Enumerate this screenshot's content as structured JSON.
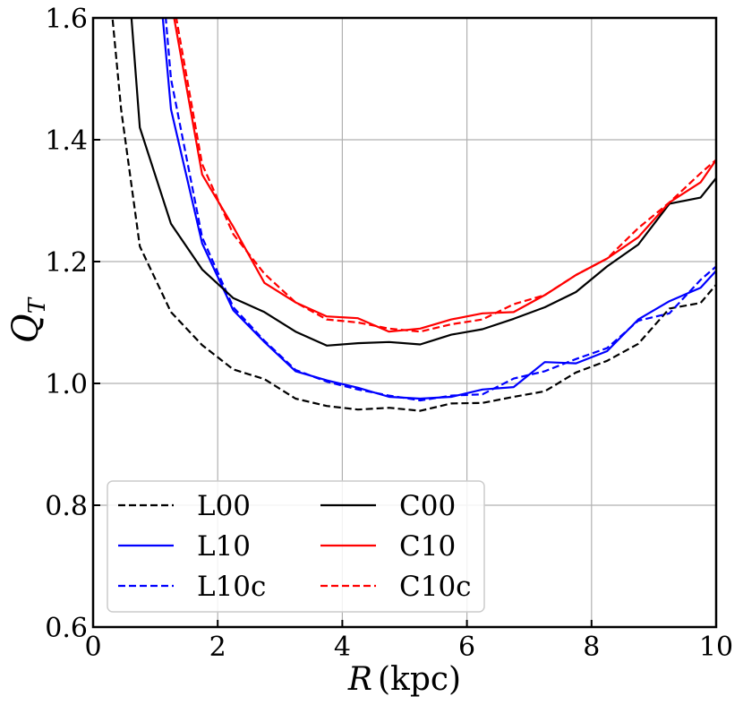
{
  "chart_data": {
    "type": "line",
    "xlabel": "R (kpc)",
    "ylabel": "Q_T",
    "xlim": [
      0,
      10
    ],
    "ylim": [
      0.6,
      1.6
    ],
    "xticks": [
      0,
      2,
      4,
      6,
      8,
      10
    ],
    "yticks": [
      0.6,
      0.8,
      1.0,
      1.2,
      1.4,
      1.6
    ],
    "xtick_labels": [
      "0",
      "2",
      "4",
      "6",
      "8",
      "10"
    ],
    "ytick_labels": [
      "0.6",
      "0.8",
      "1.0",
      "1.2",
      "1.4",
      "1.6"
    ],
    "grid": true,
    "legend": {
      "placement": "lower-left",
      "columns": 2
    },
    "series": [
      {
        "name": "L00",
        "color": "#000000",
        "dash": "dashed",
        "x": [
          0.2,
          0.45,
          0.75,
          1.25,
          1.75,
          2.25,
          2.75,
          3.25,
          3.75,
          4.25,
          4.75,
          5.25,
          5.75,
          6.25,
          6.75,
          7.25,
          7.75,
          8.25,
          8.75,
          9.25,
          9.75,
          10.0
        ],
        "y": [
          1.72,
          1.45,
          1.225,
          1.117,
          1.063,
          1.023,
          1.007,
          0.975,
          0.963,
          0.957,
          0.96,
          0.955,
          0.967,
          0.968,
          0.978,
          0.987,
          1.018,
          1.037,
          1.065,
          1.123,
          1.132,
          1.162
        ]
      },
      {
        "name": "L10",
        "color": "#0000ff",
        "dash": "solid",
        "x": [
          1.1,
          1.25,
          1.75,
          2.25,
          2.75,
          3.25,
          3.75,
          4.25,
          4.75,
          5.25,
          5.75,
          6.25,
          6.75,
          7.25,
          7.75,
          8.25,
          8.75,
          9.25,
          9.75,
          10.0
        ],
        "y": [
          1.62,
          1.45,
          1.23,
          1.12,
          1.068,
          1.02,
          1.005,
          0.993,
          0.978,
          0.975,
          0.978,
          0.99,
          0.994,
          1.035,
          1.033,
          1.053,
          1.105,
          1.135,
          1.157,
          1.185
        ]
      },
      {
        "name": "L10c",
        "color": "#0000ff",
        "dash": "dashed",
        "x": [
          1.15,
          1.25,
          1.75,
          2.25,
          2.75,
          3.25,
          3.75,
          4.25,
          4.75,
          5.25,
          5.75,
          6.25,
          6.75,
          7.25,
          7.75,
          8.25,
          8.75,
          9.25,
          9.75,
          10.0
        ],
        "y": [
          1.62,
          1.5,
          1.24,
          1.125,
          1.07,
          1.022,
          1.003,
          0.99,
          0.98,
          0.972,
          0.98,
          0.982,
          1.008,
          1.02,
          1.04,
          1.058,
          1.103,
          1.115,
          1.17,
          1.192
        ]
      },
      {
        "name": "C00",
        "color": "#000000",
        "dash": "solid",
        "x": [
          0.6,
          0.75,
          1.25,
          1.75,
          2.25,
          2.75,
          3.25,
          3.75,
          4.25,
          4.75,
          5.25,
          5.75,
          6.25,
          6.75,
          7.25,
          7.75,
          8.25,
          8.75,
          9.25,
          9.75,
          10.0
        ],
        "y": [
          1.62,
          1.42,
          1.262,
          1.187,
          1.14,
          1.117,
          1.085,
          1.062,
          1.066,
          1.068,
          1.064,
          1.08,
          1.089,
          1.106,
          1.125,
          1.15,
          1.192,
          1.228,
          1.295,
          1.305,
          1.337
        ]
      },
      {
        "name": "C10",
        "color": "#ff0000",
        "dash": "solid",
        "x": [
          1.3,
          1.75,
          2.25,
          2.75,
          3.25,
          3.75,
          4.25,
          4.75,
          5.25,
          5.75,
          6.25,
          6.75,
          7.25,
          7.75,
          8.25,
          8.75,
          9.25,
          9.75,
          10.0
        ],
        "y": [
          1.6,
          1.343,
          1.257,
          1.165,
          1.133,
          1.11,
          1.107,
          1.085,
          1.09,
          1.105,
          1.115,
          1.117,
          1.145,
          1.178,
          1.205,
          1.24,
          1.297,
          1.33,
          1.367
        ]
      },
      {
        "name": "C10c",
        "color": "#ff0000",
        "dash": "dashed",
        "x": [
          1.3,
          1.75,
          2.25,
          2.75,
          3.25,
          3.75,
          4.25,
          4.75,
          5.25,
          5.75,
          6.25,
          6.75,
          7.25,
          7.75,
          8.25,
          8.75,
          9.25,
          9.75,
          10.0
        ],
        "y": [
          1.62,
          1.36,
          1.245,
          1.18,
          1.133,
          1.105,
          1.1,
          1.09,
          1.085,
          1.097,
          1.105,
          1.13,
          1.145,
          1.178,
          1.205,
          1.255,
          1.297,
          1.345,
          1.367
        ]
      }
    ]
  }
}
